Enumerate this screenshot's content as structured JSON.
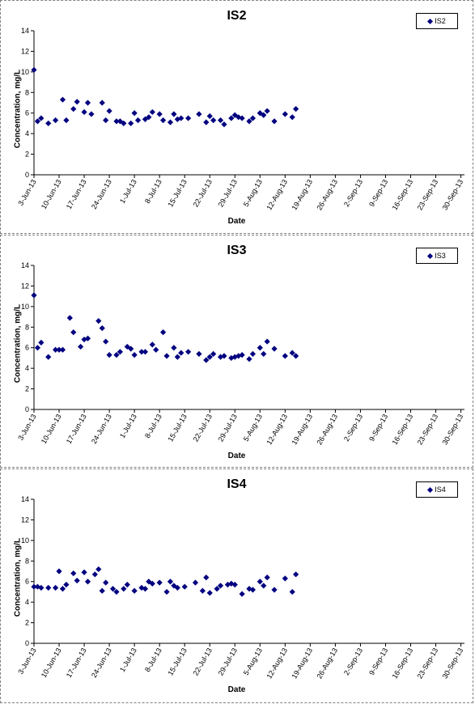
{
  "chart_data": [
    {
      "type": "scatter",
      "title": "IS2",
      "xlabel": "Date",
      "ylabel": "Concentration, mg/L",
      "ylim": [
        0,
        14
      ],
      "yticks": [
        0,
        2,
        4,
        6,
        8,
        10,
        12,
        14
      ],
      "xlim": [
        "2013-06-03",
        "2013-10-01"
      ],
      "xtick_labels": [
        "3-Jun-13",
        "10-Jun-13",
        "17-Jun-13",
        "24-Jun-13",
        "1-Jul-13",
        "8-Jul-13",
        "15-Jul-13",
        "22-Jul-13",
        "29-Jul-13",
        "5-Aug-13",
        "12-Aug-13",
        "19-Aug-13",
        "26-Aug-13",
        "2-Sep-13",
        "9-Sep-13",
        "16-Sep-13",
        "23-Sep-13",
        "30-Sep-13"
      ],
      "legend_position": "top-right",
      "grid": false,
      "marker_color": "#000080",
      "series": [
        {
          "name": "IS2",
          "points": [
            [
              "2013-06-03",
              10.2
            ],
            [
              "2013-06-04",
              5.2
            ],
            [
              "2013-06-05",
              5.5
            ],
            [
              "2013-06-07",
              5.0
            ],
            [
              "2013-06-09",
              5.3
            ],
            [
              "2013-06-11",
              7.3
            ],
            [
              "2013-06-12",
              5.3
            ],
            [
              "2013-06-14",
              6.4
            ],
            [
              "2013-06-15",
              7.1
            ],
            [
              "2013-06-17",
              6.1
            ],
            [
              "2013-06-18",
              7.0
            ],
            [
              "2013-06-19",
              5.9
            ],
            [
              "2013-06-22",
              7.0
            ],
            [
              "2013-06-23",
              5.3
            ],
            [
              "2013-06-24",
              6.2
            ],
            [
              "2013-06-26",
              5.2
            ],
            [
              "2013-06-27",
              5.2
            ],
            [
              "2013-06-28",
              5.0
            ],
            [
              "2013-06-30",
              5.0
            ],
            [
              "2013-07-01",
              6.0
            ],
            [
              "2013-07-02",
              5.3
            ],
            [
              "2013-07-04",
              5.4
            ],
            [
              "2013-07-05",
              5.6
            ],
            [
              "2013-07-06",
              6.1
            ],
            [
              "2013-07-08",
              5.9
            ],
            [
              "2013-07-09",
              5.3
            ],
            [
              "2013-07-11",
              5.1
            ],
            [
              "2013-07-12",
              5.9
            ],
            [
              "2013-07-13",
              5.4
            ],
            [
              "2013-07-14",
              5.5
            ],
            [
              "2013-07-16",
              5.5
            ],
            [
              "2013-07-19",
              5.9
            ],
            [
              "2013-07-21",
              5.1
            ],
            [
              "2013-07-22",
              5.7
            ],
            [
              "2013-07-23",
              5.3
            ],
            [
              "2013-07-25",
              5.3
            ],
            [
              "2013-07-26",
              4.9
            ],
            [
              "2013-07-28",
              5.5
            ],
            [
              "2013-07-29",
              5.8
            ],
            [
              "2013-07-30",
              5.6
            ],
            [
              "2013-07-31",
              5.5
            ],
            [
              "2013-08-02",
              5.2
            ],
            [
              "2013-08-03",
              5.5
            ],
            [
              "2013-08-05",
              6.0
            ],
            [
              "2013-08-06",
              5.8
            ],
            [
              "2013-08-07",
              6.2
            ],
            [
              "2013-08-09",
              5.2
            ],
            [
              "2013-08-12",
              5.9
            ],
            [
              "2013-08-14",
              5.6
            ],
            [
              "2013-08-15",
              6.4
            ]
          ]
        }
      ]
    },
    {
      "type": "scatter",
      "title": "IS3",
      "xlabel": "Date",
      "ylabel": "Concentration, mg/L",
      "ylim": [
        0,
        14
      ],
      "yticks": [
        0,
        2,
        4,
        6,
        8,
        10,
        12,
        14
      ],
      "xlim": [
        "2013-06-03",
        "2013-10-01"
      ],
      "xtick_labels": [
        "3-Jun-13",
        "10-Jun-13",
        "17-Jun-13",
        "24-Jun-13",
        "1-Jul-13",
        "8-Jul-13",
        "15-Jul-13",
        "22-Jul-13",
        "29-Jul-13",
        "5-Aug-13",
        "12-Aug-13",
        "19-Aug-13",
        "26-Aug-13",
        "2-Sep-13",
        "9-Sep-13",
        "16-Sep-13",
        "23-Sep-13",
        "30-Sep-13"
      ],
      "legend_position": "top-right",
      "grid": false,
      "marker_color": "#000080",
      "series": [
        {
          "name": "IS3",
          "points": [
            [
              "2013-06-03",
              11.1
            ],
            [
              "2013-06-04",
              6.0
            ],
            [
              "2013-06-05",
              6.5
            ],
            [
              "2013-06-07",
              5.1
            ],
            [
              "2013-06-09",
              5.8
            ],
            [
              "2013-06-10",
              5.8
            ],
            [
              "2013-06-11",
              5.8
            ],
            [
              "2013-06-13",
              8.9
            ],
            [
              "2013-06-14",
              7.5
            ],
            [
              "2013-06-16",
              6.1
            ],
            [
              "2013-06-17",
              6.8
            ],
            [
              "2013-06-18",
              6.9
            ],
            [
              "2013-06-21",
              8.6
            ],
            [
              "2013-06-22",
              7.9
            ],
            [
              "2013-06-23",
              6.6
            ],
            [
              "2013-06-24",
              5.3
            ],
            [
              "2013-06-26",
              5.3
            ],
            [
              "2013-06-27",
              5.6
            ],
            [
              "2013-06-29",
              6.1
            ],
            [
              "2013-06-30",
              5.9
            ],
            [
              "2013-07-01",
              5.3
            ],
            [
              "2013-07-03",
              5.6
            ],
            [
              "2013-07-04",
              5.6
            ],
            [
              "2013-07-06",
              6.3
            ],
            [
              "2013-07-07",
              5.8
            ],
            [
              "2013-07-09",
              7.5
            ],
            [
              "2013-07-10",
              5.2
            ],
            [
              "2013-07-12",
              6.0
            ],
            [
              "2013-07-13",
              5.1
            ],
            [
              "2013-07-14",
              5.5
            ],
            [
              "2013-07-16",
              5.6
            ],
            [
              "2013-07-19",
              5.4
            ],
            [
              "2013-07-21",
              4.8
            ],
            [
              "2013-07-22",
              5.1
            ],
            [
              "2013-07-23",
              5.4
            ],
            [
              "2013-07-25",
              5.1
            ],
            [
              "2013-07-26",
              5.2
            ],
            [
              "2013-07-28",
              5.0
            ],
            [
              "2013-07-29",
              5.1
            ],
            [
              "2013-07-30",
              5.2
            ],
            [
              "2013-07-31",
              5.3
            ],
            [
              "2013-08-02",
              4.9
            ],
            [
              "2013-08-03",
              5.4
            ],
            [
              "2013-08-05",
              6.0
            ],
            [
              "2013-08-06",
              5.4
            ],
            [
              "2013-08-07",
              6.6
            ],
            [
              "2013-08-09",
              5.9
            ],
            [
              "2013-08-12",
              5.2
            ],
            [
              "2013-08-14",
              5.5
            ],
            [
              "2013-08-15",
              5.2
            ]
          ]
        }
      ]
    },
    {
      "type": "scatter",
      "title": "IS4",
      "xlabel": "Date",
      "ylabel": "Concentration, mg/L",
      "ylim": [
        0,
        14
      ],
      "yticks": [
        0,
        2,
        4,
        6,
        8,
        10,
        12,
        14
      ],
      "xlim": [
        "2013-06-03",
        "2013-10-01"
      ],
      "xtick_labels": [
        "3-Jun-13",
        "10-Jun-13",
        "17-Jun-13",
        "24-Jun-13",
        "1-Jul-13",
        "8-Jul-13",
        "15-Jul-13",
        "22-Jul-13",
        "29-Jul-13",
        "5-Aug-13",
        "12-Aug-13",
        "19-Aug-13",
        "26-Aug-13",
        "2-Sep-13",
        "9-Sep-13",
        "16-Sep-13",
        "23-Sep-13",
        "30-Sep-13"
      ],
      "legend_position": "top-right",
      "grid": false,
      "marker_color": "#000080",
      "series": [
        {
          "name": "IS4",
          "points": [
            [
              "2013-06-03",
              5.5
            ],
            [
              "2013-06-04",
              5.5
            ],
            [
              "2013-06-05",
              5.4
            ],
            [
              "2013-06-07",
              5.4
            ],
            [
              "2013-06-09",
              5.4
            ],
            [
              "2013-06-10",
              7.0
            ],
            [
              "2013-06-11",
              5.3
            ],
            [
              "2013-06-12",
              5.7
            ],
            [
              "2013-06-14",
              6.8
            ],
            [
              "2013-06-15",
              6.1
            ],
            [
              "2013-06-17",
              6.9
            ],
            [
              "2013-06-18",
              6.0
            ],
            [
              "2013-06-20",
              6.7
            ],
            [
              "2013-06-21",
              7.2
            ],
            [
              "2013-06-22",
              5.1
            ],
            [
              "2013-06-23",
              5.9
            ],
            [
              "2013-06-25",
              5.3
            ],
            [
              "2013-06-26",
              5.0
            ],
            [
              "2013-06-28",
              5.3
            ],
            [
              "2013-06-29",
              5.7
            ],
            [
              "2013-07-01",
              5.1
            ],
            [
              "2013-07-03",
              5.4
            ],
            [
              "2013-07-04",
              5.3
            ],
            [
              "2013-07-05",
              6.0
            ],
            [
              "2013-07-06",
              5.8
            ],
            [
              "2013-07-08",
              5.9
            ],
            [
              "2013-07-10",
              5.0
            ],
            [
              "2013-07-11",
              6.0
            ],
            [
              "2013-07-12",
              5.6
            ],
            [
              "2013-07-13",
              5.4
            ],
            [
              "2013-07-15",
              5.5
            ],
            [
              "2013-07-18",
              5.9
            ],
            [
              "2013-07-20",
              5.1
            ],
            [
              "2013-07-21",
              6.4
            ],
            [
              "2013-07-22",
              4.9
            ],
            [
              "2013-07-24",
              5.3
            ],
            [
              "2013-07-25",
              5.6
            ],
            [
              "2013-07-27",
              5.7
            ],
            [
              "2013-07-28",
              5.8
            ],
            [
              "2013-07-29",
              5.7
            ],
            [
              "2013-07-31",
              4.8
            ],
            [
              "2013-08-02",
              5.3
            ],
            [
              "2013-08-03",
              5.2
            ],
            [
              "2013-08-05",
              6.0
            ],
            [
              "2013-08-06",
              5.6
            ],
            [
              "2013-08-07",
              6.4
            ],
            [
              "2013-08-09",
              5.2
            ],
            [
              "2013-08-12",
              6.3
            ],
            [
              "2013-08-14",
              5.0
            ],
            [
              "2013-08-15",
              6.7
            ]
          ]
        }
      ]
    }
  ]
}
